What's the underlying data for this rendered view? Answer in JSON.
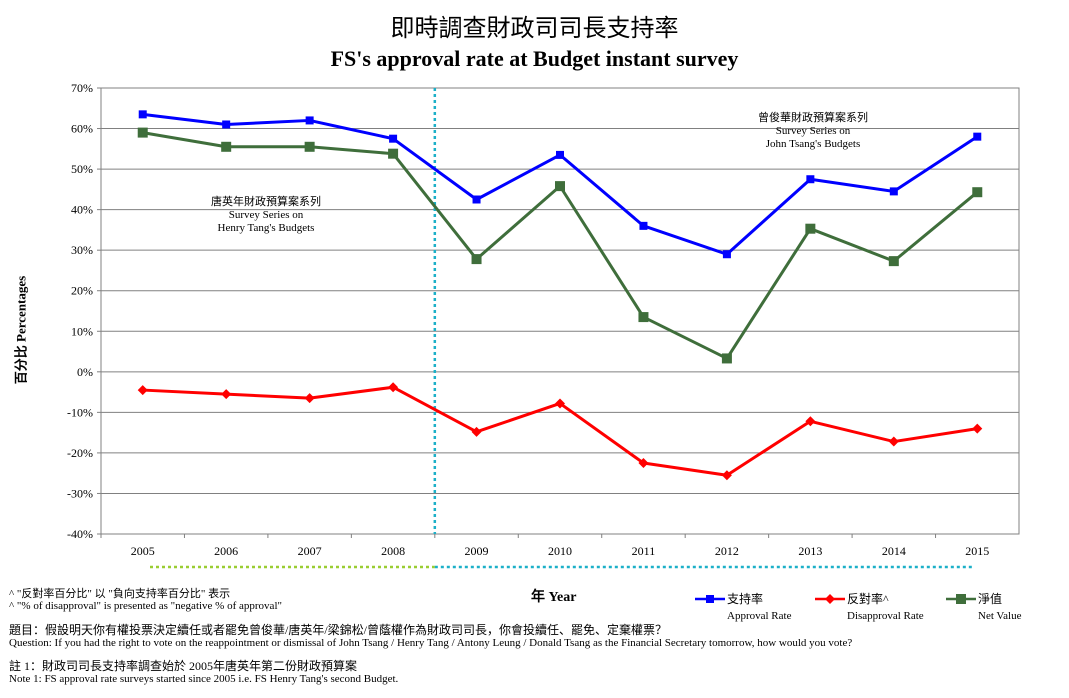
{
  "title": {
    "zh": "即時調查財政司司長支持率",
    "en": "FS's approval rate at Budget instant survey"
  },
  "chart_data": {
    "type": "line",
    "title": "FS's approval rate at Budget instant survey",
    "xlabel": "年 Year",
    "ylabel": "百分比 Percentages",
    "categories": [
      "2005",
      "2006",
      "2007",
      "2008",
      "2009",
      "2010",
      "2011",
      "2012",
      "2013",
      "2014",
      "2015"
    ],
    "yticks": [
      "70%",
      "60%",
      "50%",
      "40%",
      "30%",
      "20%",
      "10%",
      "0%",
      "-10%",
      "-20%",
      "-30%",
      "-40%"
    ],
    "ylim": [
      -40,
      70
    ],
    "grid": true,
    "legend": "bottom-right",
    "series": [
      {
        "name": "支持率 Approval Rate",
        "color": "#0000ff",
        "marker": "square",
        "values": [
          63.5,
          61,
          62,
          57.5,
          42.5,
          53.5,
          36,
          29,
          47.5,
          44.5,
          58
        ]
      },
      {
        "name": "反對率^ Disapproval Rate",
        "color": "#ff0000",
        "marker": "diamond",
        "values": [
          -4.5,
          -5.5,
          -6.5,
          -3.8,
          -14.8,
          -7.8,
          -22.5,
          -25.5,
          -12.2,
          -17.2,
          -14
        ]
      },
      {
        "name": "淨值 Net Value",
        "color": "#3f6e3b",
        "marker": "square",
        "values": [
          59,
          55.5,
          55.5,
          53.8,
          27.8,
          45.8,
          13.5,
          3.3,
          35.3,
          27.3,
          44.3
        ]
      }
    ],
    "divider_between": [
      "2008",
      "2009"
    ],
    "annotations": [
      {
        "lines": [
          "唐英年財政預算案系列",
          "Survey Series on",
          "Henry Tang's Budgets"
        ]
      },
      {
        "lines": [
          "曾俊華財政預算案系列",
          "Survey Series on",
          "John Tsang's Budgets"
        ]
      }
    ]
  },
  "legend": {
    "approval_zh": "支持率",
    "approval_en": "Approval Rate",
    "disapproval_zh": "反對率^",
    "disapproval_en": "Disapproval Rate",
    "net_zh": "淨值",
    "net_en": "Net Value"
  },
  "notes": {
    "n1": "^ \"反對率百分比\" 以 \"負向支持率百分比\" 表示",
    "n2": "^ \"% of disapproval\" is presented as \"negative % of approval\"",
    "n3": "題目：假設明天你有權投票決定續任或者罷免曾俊華/唐英年/梁錦松/曾蔭權作為財政司司長，你會投續任、罷免、定棄權票？",
    "n4": "Question: If you had the right  to vote on the reappointment or dismissal of John Tsang / Henry Tang / Antony Leung / Donald Tsang as the Financial Secretary tomorrow, how would you vote?",
    "n5": "註 1：財政司司長支持率調查始於 2005年唐英年第二份財政預算案",
    "n6": "Note 1: FS approval rate surveys started since 2005 i.e. FS Henry Tang's second Budget."
  }
}
